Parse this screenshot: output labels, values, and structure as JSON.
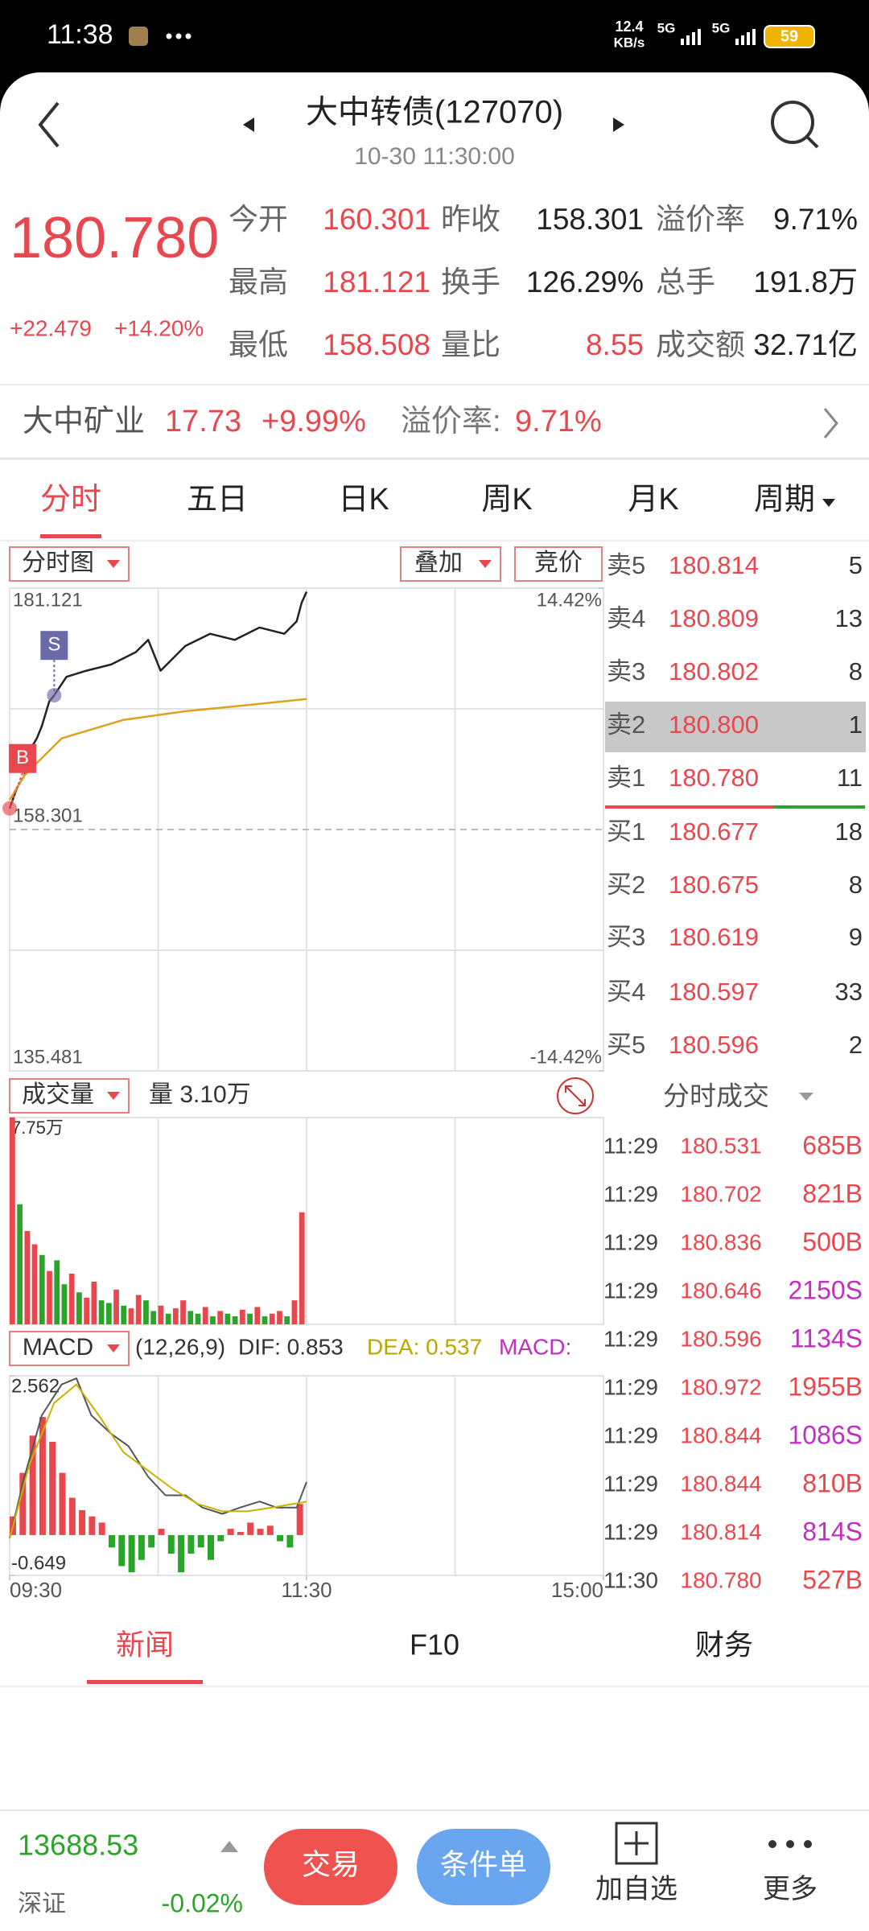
{
  "status_bar": {
    "time": "11:38",
    "speed": "12.4",
    "speed_unit": "KB/s",
    "network": [
      "5G",
      "5G"
    ],
    "battery": "59"
  },
  "header": {
    "title": "大中转债(127070)",
    "time": "10-30 11:30:00"
  },
  "quote": {
    "price": "180.780",
    "change": "+22.479",
    "change_pct": "+14.20%",
    "fields": [
      {
        "label": "今开",
        "value": "160.301",
        "color": "#e8474e"
      },
      {
        "label": "昨收",
        "value": "158.301",
        "color": "#222222"
      },
      {
        "label": "溢价率",
        "value": "9.71%",
        "color": "#222222"
      },
      {
        "label": "最高",
        "value": "181.121",
        "color": "#e8474e"
      },
      {
        "label": "换手",
        "value": "126.29%",
        "color": "#222222"
      },
      {
        "label": "总手",
        "value": "191.8万",
        "color": "#222222"
      },
      {
        "label": "最低",
        "value": "158.508",
        "color": "#e8474e"
      },
      {
        "label": "量比",
        "value": "8.55",
        "color": "#e8474e"
      },
      {
        "label": "成交额",
        "value": "32.71亿",
        "color": "#222222"
      }
    ]
  },
  "related": {
    "name": "大中矿业",
    "price": "17.73",
    "change_pct": "+9.99%",
    "premium_label": "溢价率:",
    "premium": "9.71%"
  },
  "tabs": [
    "分时",
    "五日",
    "日K",
    "周K",
    "月K",
    "周期"
  ],
  "chart_buttons": [
    "分时图",
    "叠加",
    "竞价"
  ],
  "chart_data": [
    {
      "type": "line",
      "xlim": [
        0,
        240
      ],
      "ylim": [
        135.481,
        181.121
      ],
      "yticks": [
        181.121,
        158.301,
        135.481
      ],
      "y2lim": [
        -14.42,
        14.42
      ],
      "y2ticks": [
        {
          "value": 14.42,
          "label": "14.42%"
        },
        {
          "value": -14.42,
          "label": "-14.42%"
        }
      ],
      "series": [
        {
          "color": "#222222",
          "x": [
            0,
            3,
            6,
            8,
            11,
            13,
            16,
            18,
            23,
            31,
            41,
            51,
            56,
            61,
            71,
            81,
            91,
            101,
            111,
            116,
            118,
            120
          ],
          "values": [
            160.3,
            162.26,
            163.43,
            165.76,
            166.92,
            168.08,
            170.41,
            170.99,
            172.74,
            173.32,
            173.9,
            175.07,
            176.23,
            173.32,
            175.65,
            176.81,
            176.23,
            177.4,
            176.81,
            177.98,
            179.72,
            180.78
          ]
        },
        {
          "color": "#e0a020",
          "x": [
            0,
            6,
            21,
            46,
            71,
            96,
            120
          ],
          "values": [
            161.1,
            163.43,
            166.92,
            168.67,
            169.48,
            170.06,
            170.64
          ]
        }
      ],
      "trade_marks": [
        {
          "label": "B",
          "x": 0,
          "value": 160.3,
          "color": "#e8474e"
        },
        {
          "label": "S",
          "x": 18,
          "value": 170.99,
          "color": "#6a6aa8"
        }
      ]
    },
    {
      "type": "bar",
      "title": "成交量",
      "summary": "量 3.10万",
      "xlim": [
        0,
        240
      ],
      "ylim": [
        0,
        77500
      ],
      "yticks": [
        {
          "value": 77500,
          "label": "7.75万"
        }
      ],
      "x": [
        0,
        3,
        6,
        9,
        12,
        15,
        18,
        21,
        24,
        27,
        30,
        33,
        36,
        39,
        42,
        45,
        48,
        51,
        54,
        57,
        60,
        63,
        66,
        69,
        72,
        75,
        78,
        81,
        84,
        87,
        90,
        93,
        96,
        99,
        102,
        105,
        108,
        111,
        114,
        117
      ],
      "values": [
        77500,
        45000,
        35000,
        30000,
        26000,
        20000,
        24000,
        15000,
        19000,
        12000,
        10000,
        16000,
        9000,
        8000,
        13000,
        7000,
        6000,
        11000,
        9000,
        5000,
        7000,
        4000,
        6000,
        9000,
        5000,
        4000,
        6500,
        3000,
        5000,
        4000,
        3000,
        5500,
        4000,
        6500,
        3000,
        4000,
        5000,
        3000,
        9000,
        42000
      ],
      "colors": [
        "#e8474e",
        "#2aa52a",
        "#e8474e",
        "#e8474e",
        "#2aa52a",
        "#e8474e",
        "#2aa52a",
        "#2aa52a",
        "#e8474e",
        "#2aa52a",
        "#e8474e",
        "#e8474e",
        "#2aa52a",
        "#2aa52a",
        "#e8474e",
        "#2aa52a",
        "#e8474e",
        "#e8474e",
        "#2aa52a",
        "#2aa52a",
        "#e8474e",
        "#2aa52a",
        "#e8474e",
        "#e8474e",
        "#2aa52a",
        "#2aa52a",
        "#e8474e",
        "#2aa52a",
        "#e8474e",
        "#2aa52a",
        "#2aa52a",
        "#e8474e",
        "#2aa52a",
        "#e8474e",
        "#2aa52a",
        "#e8474e",
        "#e8474e",
        "#2aa52a",
        "#e8474e",
        "#e8474e"
      ]
    },
    {
      "type": "macd",
      "title": "MACD",
      "params": "(12,26,9)",
      "dif_label": "DIF: 0.853",
      "dea_label": "DEA: 0.537",
      "macd_label": "MACD:",
      "xlim": [
        0,
        240
      ],
      "ylim": [
        -0.649,
        2.562
      ],
      "yticks": [
        2.562,
        -0.649
      ],
      "xticks": [
        {
          "value": 0,
          "label": "09:30"
        },
        {
          "value": 120,
          "label": "11:30"
        },
        {
          "value": 240,
          "label": "15:00"
        }
      ],
      "histogram": {
        "up_color": "#e8474e",
        "down_color": "#2aa52a",
        "x": [
          0,
          4,
          8,
          12,
          16,
          20,
          24,
          28,
          32,
          36,
          40,
          44,
          48,
          52,
          56,
          60,
          64,
          68,
          72,
          76,
          80,
          84,
          88,
          92,
          96,
          100,
          104,
          108,
          112,
          116
        ],
        "values": [
          0.3,
          1.0,
          1.6,
          1.9,
          1.5,
          1.0,
          0.6,
          0.4,
          0.3,
          0.2,
          -0.2,
          -0.5,
          -0.6,
          -0.4,
          -0.2,
          0.1,
          -0.3,
          -0.6,
          -0.3,
          -0.2,
          -0.4,
          -0.1,
          0.1,
          0.05,
          0.2,
          0.1,
          0.15,
          -0.1,
          -0.2,
          0.5
        ]
      },
      "series": [
        {
          "color": "#555555",
          "x": [
            0,
            6,
            13,
            21,
            27,
            33,
            41,
            48,
            56,
            63,
            71,
            78,
            86,
            93,
            101,
            108,
            116,
            120
          ],
          "values": [
            -0.054,
            0.937,
            1.928,
            2.423,
            2.522,
            1.928,
            1.63,
            1.432,
            0.937,
            0.639,
            0.639,
            0.441,
            0.342,
            0.441,
            0.54,
            0.441,
            0.441,
            0.853
          ]
        },
        {
          "color": "#c8b400",
          "x": [
            0,
            8,
            18,
            27,
            36,
            46,
            56,
            66,
            76,
            86,
            96,
            106,
            120
          ],
          "values": [
            -0.054,
            1.135,
            2.126,
            2.423,
            1.928,
            1.333,
            1.036,
            0.739,
            0.501,
            0.382,
            0.382,
            0.441,
            0.537
          ]
        }
      ]
    }
  ],
  "order_book": {
    "asks": [
      {
        "label": "卖5",
        "price": "180.814",
        "volume": "5"
      },
      {
        "label": "卖4",
        "price": "180.809",
        "volume": "13"
      },
      {
        "label": "卖3",
        "price": "180.802",
        "volume": "8"
      },
      {
        "label": "卖2",
        "price": "180.800",
        "volume": "1"
      },
      {
        "label": "卖1",
        "price": "180.780",
        "volume": "11"
      }
    ],
    "bids": [
      {
        "label": "买1",
        "price": "180.677",
        "volume": "18"
      },
      {
        "label": "买2",
        "price": "180.675",
        "volume": "8"
      },
      {
        "label": "买3",
        "price": "180.619",
        "volume": "9"
      },
      {
        "label": "买4",
        "price": "180.597",
        "volume": "33"
      },
      {
        "label": "买5",
        "price": "180.596",
        "volume": "2"
      }
    ]
  },
  "trades": {
    "title": "分时成交",
    "rows": [
      {
        "time": "11:29",
        "price": "180.531",
        "volume": "685B"
      },
      {
        "time": "11:29",
        "price": "180.702",
        "volume": "821B"
      },
      {
        "time": "11:29",
        "price": "180.836",
        "volume": "500B"
      },
      {
        "time": "11:29",
        "price": "180.646",
        "volume": "2150S"
      },
      {
        "time": "11:29",
        "price": "180.596",
        "volume": "1134S"
      },
      {
        "time": "11:29",
        "price": "180.972",
        "volume": "1955B"
      },
      {
        "time": "11:29",
        "price": "180.844",
        "volume": "1086S"
      },
      {
        "time": "11:29",
        "price": "180.844",
        "volume": "810B"
      },
      {
        "time": "11:29",
        "price": "180.814",
        "volume": "814S"
      },
      {
        "time": "11:30",
        "price": "180.780",
        "volume": "527B"
      }
    ]
  },
  "bottom_tabs": [
    "新闻",
    "F10",
    "财务"
  ],
  "footer": {
    "index": "13688.53",
    "index_name": "深证",
    "index_change": "-0.02%",
    "buttons": [
      "交易",
      "条件单"
    ],
    "actions": [
      "加自选",
      "更多"
    ]
  }
}
